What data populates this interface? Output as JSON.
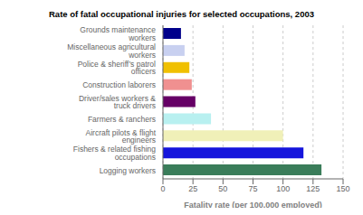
{
  "chart_data": {
    "type": "bar",
    "orientation": "horizontal",
    "title": "Rate of fatal occupational injuries for selected occupations, 2003",
    "xlabel": "Fatality rate (per 100,000 employed)",
    "categories": [
      "Logging workers",
      "Fishers & related fishing occupations",
      "Aircraft pilots & flight engineers",
      "Farmers & ranchers",
      "Driver/sales workers & truck drivers",
      "Construction laborers",
      "Police & sheriff’s patrol officers",
      "Miscellaneous agricultural workers",
      "Grounds maintenance workers"
    ],
    "values": [
      132,
      117,
      100,
      40,
      27,
      24,
      22,
      18,
      15
    ],
    "colors": [
      "#3a7d5a",
      "#1515dc",
      "#f0f0b8",
      "#b8f0f0",
      "#660066",
      "#f09090",
      "#f0c000",
      "#c8d0f0",
      "#00008b"
    ],
    "xlim": [
      0,
      150
    ],
    "xticks": [
      0,
      25,
      50,
      75,
      100,
      125,
      150
    ],
    "grid": true
  }
}
